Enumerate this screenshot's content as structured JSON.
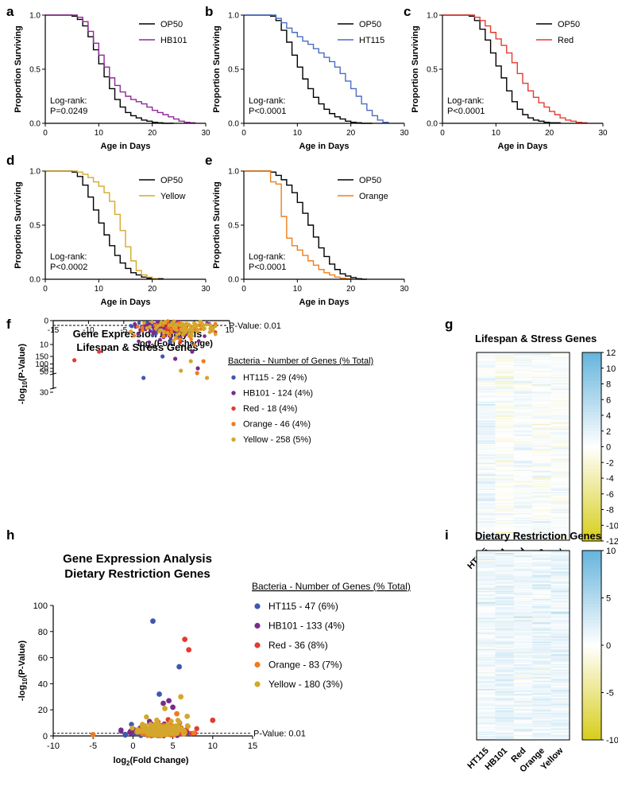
{
  "panels": {
    "a": "a",
    "b": "b",
    "c": "c",
    "d": "d",
    "e": "e",
    "f": "f",
    "g": "g",
    "h": "h",
    "i": "i"
  },
  "chart_data": [
    {
      "id": "a",
      "type": "line",
      "xlabel": "Age in Days",
      "ylabel": "Proportion Surviving",
      "xlim": [
        0,
        30
      ],
      "ylim": [
        0,
        1
      ],
      "xticks": [
        "0",
        "10",
        "20",
        "30"
      ],
      "yticks": [
        "0.0",
        "0.5",
        "1.0"
      ],
      "annotation": [
        "Log-rank:",
        "P=0.0249"
      ],
      "series": [
        {
          "name": "OP50",
          "color": "#000000",
          "x": [
            0,
            5,
            6,
            7,
            8,
            9,
            10,
            11,
            12,
            13,
            14,
            15,
            16,
            17,
            18,
            19,
            20,
            21,
            22,
            24
          ],
          "y": [
            1.0,
            0.99,
            0.96,
            0.9,
            0.8,
            0.68,
            0.55,
            0.43,
            0.32,
            0.22,
            0.15,
            0.1,
            0.07,
            0.05,
            0.03,
            0.02,
            0.01,
            0.005,
            0.0,
            0.0
          ]
        },
        {
          "name": "HB101",
          "color": "#8e2a96",
          "x": [
            0,
            6,
            7,
            8,
            9,
            10,
            11,
            12,
            13,
            14,
            15,
            16,
            17,
            18,
            19,
            20,
            21,
            22,
            23,
            24,
            25,
            26,
            27,
            28
          ],
          "y": [
            1.0,
            0.98,
            0.94,
            0.85,
            0.74,
            0.63,
            0.52,
            0.42,
            0.35,
            0.29,
            0.25,
            0.22,
            0.2,
            0.18,
            0.15,
            0.12,
            0.1,
            0.08,
            0.06,
            0.04,
            0.02,
            0.01,
            0.005,
            0.0
          ]
        }
      ]
    },
    {
      "id": "b",
      "type": "line",
      "xlabel": "Age in Days",
      "ylabel": "Proportion Surviving",
      "xlim": [
        0,
        30
      ],
      "ylim": [
        0,
        1
      ],
      "xticks": [
        "0",
        "10",
        "20",
        "30"
      ],
      "yticks": [
        "0.0",
        "0.5",
        "1.0"
      ],
      "annotation": [
        "Log-rank:",
        "P<0.0001"
      ],
      "series": [
        {
          "name": "OP50",
          "color": "#000000",
          "x": [
            0,
            5,
            6,
            7,
            8,
            9,
            10,
            11,
            12,
            13,
            14,
            15,
            16,
            17,
            18,
            19,
            20,
            21,
            22,
            24
          ],
          "y": [
            1.0,
            0.99,
            0.95,
            0.86,
            0.75,
            0.63,
            0.52,
            0.41,
            0.32,
            0.24,
            0.18,
            0.13,
            0.09,
            0.06,
            0.04,
            0.02,
            0.01,
            0.005,
            0.0,
            0.0
          ]
        },
        {
          "name": "HT115",
          "color": "#4a6cc4",
          "x": [
            0,
            6,
            7,
            8,
            9,
            10,
            11,
            12,
            13,
            14,
            15,
            16,
            17,
            18,
            19,
            20,
            21,
            22,
            23,
            24,
            25,
            26,
            27
          ],
          "y": [
            1.0,
            0.97,
            0.93,
            0.88,
            0.84,
            0.8,
            0.76,
            0.73,
            0.69,
            0.65,
            0.61,
            0.57,
            0.52,
            0.46,
            0.39,
            0.32,
            0.25,
            0.18,
            0.12,
            0.07,
            0.03,
            0.01,
            0.0
          ]
        }
      ]
    },
    {
      "id": "c",
      "type": "line",
      "xlabel": "Age in Days",
      "ylabel": "Proportion Surviving",
      "xlim": [
        0,
        30
      ],
      "ylim": [
        0,
        1
      ],
      "xticks": [
        "0",
        "10",
        "20",
        "30"
      ],
      "yticks": [
        "0.0",
        "0.5",
        "1.0"
      ],
      "annotation": [
        "Log-rank:",
        "P<0.0001"
      ],
      "series": [
        {
          "name": "OP50",
          "color": "#000000",
          "x": [
            0,
            5,
            6,
            7,
            8,
            9,
            10,
            11,
            12,
            13,
            14,
            15,
            16,
            17,
            18,
            19,
            20,
            22
          ],
          "y": [
            1.0,
            0.99,
            0.95,
            0.87,
            0.77,
            0.65,
            0.53,
            0.42,
            0.3,
            0.2,
            0.13,
            0.08,
            0.05,
            0.03,
            0.02,
            0.01,
            0.005,
            0.0
          ]
        },
        {
          "name": "Red",
          "color": "#e53a32",
          "x": [
            0,
            6,
            7,
            8,
            9,
            10,
            11,
            12,
            13,
            14,
            15,
            16,
            17,
            18,
            19,
            20,
            21,
            22,
            23,
            24,
            25,
            26,
            27
          ],
          "y": [
            1.0,
            0.98,
            0.95,
            0.9,
            0.84,
            0.78,
            0.72,
            0.65,
            0.56,
            0.46,
            0.37,
            0.3,
            0.24,
            0.19,
            0.15,
            0.11,
            0.08,
            0.05,
            0.03,
            0.02,
            0.01,
            0.005,
            0.0
          ]
        }
      ]
    },
    {
      "id": "d",
      "type": "line",
      "xlabel": "Age in Days",
      "ylabel": "Proportion Surviving",
      "xlim": [
        0,
        30
      ],
      "ylim": [
        0,
        1
      ],
      "xticks": [
        "0",
        "10",
        "20",
        "30"
      ],
      "yticks": [
        "0.0",
        "0.5",
        "1.0"
      ],
      "annotation": [
        "Log-rank:",
        "P<0.0002"
      ],
      "series": [
        {
          "name": "OP50",
          "color": "#000000",
          "x": [
            0,
            5,
            6,
            7,
            8,
            9,
            10,
            11,
            12,
            13,
            14,
            15,
            16,
            17,
            18,
            19,
            20,
            22
          ],
          "y": [
            1.0,
            0.99,
            0.95,
            0.87,
            0.76,
            0.64,
            0.52,
            0.41,
            0.31,
            0.22,
            0.15,
            0.1,
            0.06,
            0.04,
            0.02,
            0.01,
            0.005,
            0.0
          ]
        },
        {
          "name": "Yellow",
          "color": "#d4a92b",
          "x": [
            0,
            6,
            7,
            8,
            9,
            10,
            11,
            12,
            13,
            14,
            15,
            16,
            17,
            18,
            19,
            20,
            21
          ],
          "y": [
            1.0,
            0.99,
            0.97,
            0.94,
            0.9,
            0.86,
            0.8,
            0.72,
            0.6,
            0.45,
            0.3,
            0.17,
            0.08,
            0.04,
            0.02,
            0.005,
            0.0
          ]
        }
      ]
    },
    {
      "id": "e",
      "type": "line",
      "xlabel": "Age in Days",
      "ylabel": "Proportion Surviving",
      "xlim": [
        0,
        30
      ],
      "ylim": [
        0,
        1
      ],
      "xticks": [
        "0",
        "10",
        "20",
        "30"
      ],
      "yticks": [
        "0.0",
        "0.5",
        "1.0"
      ],
      "annotation": [
        "Log-rank:",
        "P<0.0001"
      ],
      "series": [
        {
          "name": "OP50",
          "color": "#000000",
          "x": [
            0,
            5,
            6,
            7,
            8,
            9,
            10,
            11,
            12,
            13,
            14,
            15,
            16,
            17,
            18,
            19,
            20,
            21,
            22,
            23
          ],
          "y": [
            1.0,
            0.99,
            0.96,
            0.92,
            0.87,
            0.8,
            0.71,
            0.61,
            0.5,
            0.39,
            0.29,
            0.21,
            0.14,
            0.09,
            0.05,
            0.03,
            0.015,
            0.005,
            0.0,
            0.0
          ]
        },
        {
          "name": "Orange",
          "color": "#f07d1a",
          "x": [
            0,
            5,
            6,
            7,
            8,
            9,
            10,
            11,
            12,
            13,
            14,
            15,
            16,
            17,
            18,
            19,
            20
          ],
          "y": [
            1.0,
            0.9,
            0.88,
            0.58,
            0.38,
            0.31,
            0.27,
            0.22,
            0.17,
            0.13,
            0.09,
            0.06,
            0.04,
            0.02,
            0.01,
            0.005,
            0.0
          ]
        }
      ]
    },
    {
      "id": "f",
      "type": "scatter",
      "title": [
        "Gene Expression Analysis",
        "Lifespan & Stress Genes"
      ],
      "xlabel": "log2(Fold Change)",
      "ylabel": "-log10(P-Value)",
      "xlim": [
        -15,
        10
      ],
      "ylim": [
        0,
        150
      ],
      "xticks": [
        "-15",
        "-10",
        "-5",
        "0",
        "5",
        "10"
      ],
      "yticks_lower": [
        "0",
        "10",
        "20",
        "30"
      ],
      "yticks_upper": [
        "50",
        "100",
        "150"
      ],
      "threshold_label": "P-Value: 0.01",
      "legend_title": "Bacteria - Number of Genes (% Total)",
      "series": [
        {
          "name": "HT115 - 29 (4%)",
          "color": "#3e57b0",
          "count": 29,
          "highlights": [
            [
              -2.2,
              24
            ],
            [
              0.5,
              15
            ],
            [
              1.6,
              9
            ]
          ]
        },
        {
          "name": "HB101 - 124 (4%)",
          "color": "#7a2a8c",
          "count": 124,
          "highlights": [
            [
              2.3,
              16
            ],
            [
              5.5,
              20
            ],
            [
              4.7,
              13
            ]
          ]
        },
        {
          "name": "Red - 18 (4%)",
          "color": "#e33a30",
          "count": 18,
          "highlights": [
            [
              -12,
              125
            ],
            [
              -8.5,
              13
            ],
            [
              3.0,
              9
            ]
          ]
        },
        {
          "name": "Orange - 46 (4%)",
          "color": "#f07b1c",
          "count": 46,
          "highlights": [
            [
              5.4,
              22
            ],
            [
              6.3,
              17
            ]
          ]
        },
        {
          "name": "Yellow - 258 (5%)",
          "color": "#d4a72c",
          "count": 258,
          "highlights": [
            [
              6.8,
              24
            ],
            [
              3.1,
              21
            ],
            [
              4.5,
              17
            ]
          ]
        }
      ]
    },
    {
      "id": "g",
      "type": "heatmap",
      "title": "Lifespan & Stress Genes",
      "columns": [
        "HT115",
        "HB101",
        "Red",
        "Orange",
        "Yellow"
      ],
      "scale_ticks": [
        "12",
        "10",
        "8",
        "6",
        "4",
        "2",
        "0",
        "-2",
        "-4",
        "-6",
        "-8",
        "-10",
        "-12"
      ],
      "range": [
        -12,
        12
      ],
      "rows": 160
    },
    {
      "id": "h",
      "type": "scatter",
      "title": [
        "Gene Expression Analysis",
        "Dietary Restriction Genes"
      ],
      "xlabel": "log2(Fold Change)",
      "ylabel": "-log10(P-Value)",
      "xlim": [
        -10,
        15
      ],
      "ylim": [
        0,
        100
      ],
      "xticks": [
        "-10",
        "-5",
        "0",
        "5",
        "10",
        "15"
      ],
      "yticks": [
        "0",
        "20",
        "40",
        "60",
        "80",
        "100"
      ],
      "threshold_label": "P-Value: 0.01",
      "legend_title": "Bacteria - Number of Genes (% Total)",
      "series": [
        {
          "name": "HT115 - 47 (6%)",
          "color": "#3e57b0",
          "count": 47,
          "highlights": [
            [
              2.5,
              88
            ],
            [
              5.8,
              53
            ],
            [
              3.3,
              32
            ]
          ]
        },
        {
          "name": "HB101 - 133 (4%)",
          "color": "#7a2a8c",
          "count": 133,
          "highlights": [
            [
              4.5,
              27
            ],
            [
              3.8,
              25
            ],
            [
              5.0,
              22
            ]
          ]
        },
        {
          "name": "Red - 36 (8%)",
          "color": "#e33a30",
          "count": 36,
          "highlights": [
            [
              6.5,
              74
            ],
            [
              7.0,
              66
            ],
            [
              10.0,
              12
            ]
          ]
        },
        {
          "name": "Orange - 83 (7%)",
          "color": "#f07b1c",
          "count": 83,
          "highlights": [
            [
              -5,
              1
            ],
            [
              5.5,
              17
            ]
          ]
        },
        {
          "name": "Yellow - 180 (3%)",
          "color": "#d4a72c",
          "count": 180,
          "highlights": [
            [
              6.0,
              30
            ],
            [
              4.0,
              21
            ],
            [
              6.8,
              15
            ]
          ]
        }
      ]
    },
    {
      "id": "i",
      "type": "heatmap",
      "title": "Dietary Restriction Genes",
      "columns": [
        "HT115",
        "HB101",
        "Red",
        "Orange",
        "Yellow"
      ],
      "scale_ticks": [
        "10",
        "5",
        "0",
        "-5",
        "-10"
      ],
      "range": [
        -10,
        10
      ],
      "rows": 160
    }
  ]
}
